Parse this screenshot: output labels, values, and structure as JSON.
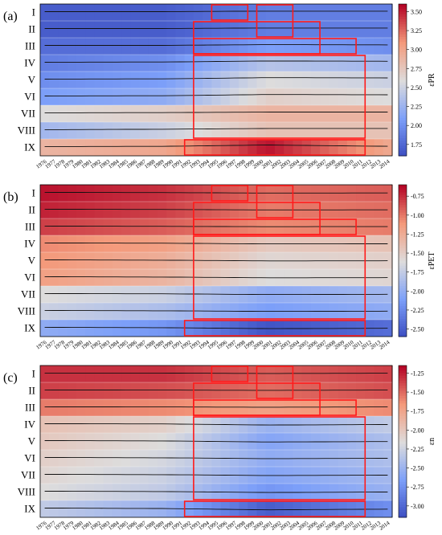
{
  "chart_data": [
    {
      "type": "heatmap",
      "panel_label": "(a)",
      "colorbar_label": "εPR",
      "colorbar_ticks": [
        3.5,
        3.25,
        3.0,
        2.75,
        2.5,
        2.25,
        2.0,
        1.75
      ],
      "colorbar_range": [
        1.6,
        3.6
      ],
      "rows": [
        "I",
        "II",
        "III",
        "IV",
        "V",
        "VI",
        "VII",
        "VIII",
        "IX"
      ],
      "x": [
        "1976",
        "1977",
        "1978",
        "1979",
        "1980",
        "1981",
        "1982",
        "1983",
        "1984",
        "1985",
        "1986",
        "1987",
        "1988",
        "1989",
        "1990",
        "1991",
        "1992",
        "1993",
        "1994",
        "1995",
        "1996",
        "1997",
        "1998",
        "1999",
        "2000",
        "2001",
        "2002",
        "2003",
        "2004",
        "2005",
        "2006",
        "2007",
        "2008",
        "2009",
        "2010",
        "2011",
        "2012",
        "2013",
        "2014"
      ],
      "row_profiles": [
        [
          1.7,
          1.7,
          1.9,
          1.9
        ],
        [
          1.7,
          1.7,
          1.9,
          1.9
        ],
        [
          1.8,
          1.8,
          2.1,
          2.0
        ],
        [
          1.9,
          2.0,
          2.4,
          2.3
        ],
        [
          2.0,
          2.1,
          2.6,
          2.5
        ],
        [
          2.1,
          2.2,
          2.7,
          2.6
        ],
        [
          2.6,
          2.7,
          2.9,
          2.9
        ],
        [
          2.3,
          2.5,
          2.8,
          2.8
        ],
        [
          2.9,
          3.0,
          3.55,
          3.0
        ]
      ],
      "red_boxes": [
        {
          "rows": [
            "I"
          ],
          "x_from": "1995",
          "x_to": "1998"
        },
        {
          "rows": [
            "I",
            "II"
          ],
          "x_from": "2000",
          "x_to": "2003"
        },
        {
          "rows": [
            "II",
            "III"
          ],
          "x_from": "1993",
          "x_to": "2006"
        },
        {
          "rows": [
            "III"
          ],
          "x_from": "1993",
          "x_to": "2010"
        },
        {
          "rows": [
            "IV",
            "V",
            "VI",
            "VII",
            "VIII"
          ],
          "x_from": "1993",
          "x_to": "2011"
        },
        {
          "rows": [
            "IX"
          ],
          "x_from": "1992",
          "x_to": "2011"
        }
      ]
    },
    {
      "type": "heatmap",
      "panel_label": "(b)",
      "colorbar_label": "εPET",
      "colorbar_ticks": [
        -0.75,
        -1.0,
        -1.25,
        -1.5,
        -1.75,
        -2.0,
        -2.25,
        -2.5
      ],
      "colorbar_range": [
        -2.6,
        -0.6
      ],
      "rows": [
        "I",
        "II",
        "III",
        "IV",
        "V",
        "VI",
        "VII",
        "VIII",
        "IX"
      ],
      "x": [
        "1976",
        "1977",
        "1978",
        "1979",
        "1980",
        "1981",
        "1982",
        "1983",
        "1984",
        "1985",
        "1986",
        "1987",
        "1988",
        "1989",
        "1990",
        "1991",
        "1992",
        "1993",
        "1994",
        "1995",
        "1996",
        "1997",
        "1998",
        "1999",
        "2000",
        "2001",
        "2002",
        "2003",
        "2004",
        "2005",
        "2006",
        "2007",
        "2008",
        "2009",
        "2010",
        "2011",
        "2012",
        "2013",
        "2014"
      ],
      "row_profiles": [
        [
          -0.65,
          -0.75,
          -0.95,
          -0.9
        ],
        [
          -0.7,
          -0.8,
          -1.0,
          -0.95
        ],
        [
          -0.8,
          -0.9,
          -1.05,
          -1.0
        ],
        [
          -1.05,
          -1.15,
          -1.45,
          -1.4
        ],
        [
          -1.1,
          -1.25,
          -1.55,
          -1.5
        ],
        [
          -1.15,
          -1.3,
          -1.6,
          -1.55
        ],
        [
          -1.6,
          -1.7,
          -2.0,
          -1.9
        ],
        [
          -1.7,
          -1.85,
          -2.1,
          -2.0
        ],
        [
          -2.0,
          -2.15,
          -2.55,
          -2.4
        ]
      ],
      "red_boxes": [
        {
          "rows": [
            "I"
          ],
          "x_from": "1995",
          "x_to": "1998"
        },
        {
          "rows": [
            "I",
            "II"
          ],
          "x_from": "2000",
          "x_to": "2003"
        },
        {
          "rows": [
            "II",
            "III"
          ],
          "x_from": "1993",
          "x_to": "2006"
        },
        {
          "rows": [
            "III"
          ],
          "x_from": "1993",
          "x_to": "2010"
        },
        {
          "rows": [
            "IV",
            "V",
            "VI",
            "VII",
            "VIII"
          ],
          "x_from": "1993",
          "x_to": "2011"
        },
        {
          "rows": [
            "IX"
          ],
          "x_from": "1992",
          "x_to": "2011"
        }
      ]
    },
    {
      "type": "heatmap",
      "panel_label": "(c)",
      "colorbar_label": "εn",
      "colorbar_ticks": [
        -1.25,
        -1.5,
        -1.75,
        -2.0,
        -2.25,
        -2.5,
        -2.75,
        -3.0
      ],
      "colorbar_range": [
        -3.15,
        -1.15
      ],
      "rows": [
        "I",
        "II",
        "III",
        "IV",
        "V",
        "VI",
        "VII",
        "VIII",
        "IX"
      ],
      "x": [
        "1976",
        "1977",
        "1978",
        "1979",
        "1980",
        "1981",
        "1982",
        "1983",
        "1984",
        "1985",
        "1986",
        "1987",
        "1988",
        "1989",
        "1990",
        "1991",
        "1992",
        "1993",
        "1994",
        "1995",
        "1996",
        "1997",
        "1998",
        "1999",
        "2000",
        "2001",
        "2002",
        "2003",
        "2004",
        "2005",
        "2006",
        "2007",
        "2008",
        "2009",
        "2010",
        "2011",
        "2012",
        "2013",
        "2014"
      ],
      "row_profiles": [
        [
          -1.3,
          -1.3,
          -1.45,
          -1.35
        ],
        [
          -1.35,
          -1.4,
          -1.5,
          -1.4
        ],
        [
          -1.55,
          -1.6,
          -1.7,
          -1.6
        ],
        [
          -1.95,
          -2.05,
          -2.5,
          -2.3
        ],
        [
          -2.0,
          -2.15,
          -2.6,
          -2.4
        ],
        [
          -2.05,
          -2.2,
          -2.55,
          -2.4
        ],
        [
          -2.1,
          -2.25,
          -2.6,
          -2.45
        ],
        [
          -2.15,
          -2.3,
          -2.7,
          -2.5
        ],
        [
          -2.3,
          -2.5,
          -3.05,
          -2.75
        ]
      ],
      "red_boxes": [
        {
          "rows": [
            "I"
          ],
          "x_from": "1995",
          "x_to": "1998"
        },
        {
          "rows": [
            "I",
            "II"
          ],
          "x_from": "2000",
          "x_to": "2003"
        },
        {
          "rows": [
            "II",
            "III"
          ],
          "x_from": "1993",
          "x_to": "2006"
        },
        {
          "rows": [
            "III"
          ],
          "x_from": "1993",
          "x_to": "2010"
        },
        {
          "rows": [
            "IV",
            "V",
            "VI",
            "VII",
            "VIII"
          ],
          "x_from": "1993",
          "x_to": "2011"
        },
        {
          "rows": [
            "IX"
          ],
          "x_from": "1992",
          "x_to": "2011"
        }
      ]
    }
  ]
}
